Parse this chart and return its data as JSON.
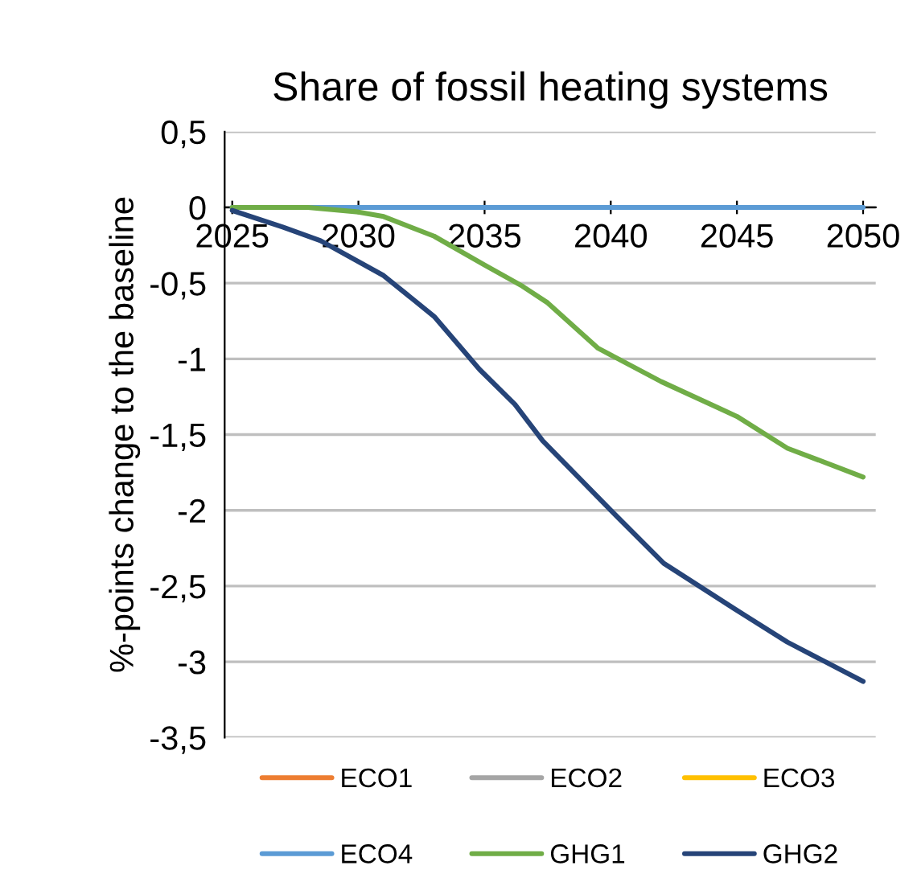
{
  "chart_data": {
    "type": "line",
    "title": "Share of fossil heating systems",
    "ylabel": "%-points change to the baseline",
    "x": [
      2025,
      2050
    ],
    "series": [
      {
        "name": "ECO1",
        "color": "#ed7d31",
        "values": [
          null,
          null
        ]
      },
      {
        "name": "ECO2",
        "color": "#a5a5a5",
        "values": [
          null,
          null
        ]
      },
      {
        "name": "ECO3",
        "color": "#ffc000",
        "values": [
          null,
          null
        ]
      },
      {
        "name": "ECO4",
        "color": "#5b9bd5",
        "values": [
          0,
          0
        ]
      },
      {
        "name": "GHG1",
        "color": "#70ad47",
        "x": [
          2025,
          2028,
          2030,
          2031,
          2033,
          2035,
          2036.5,
          2037.5,
          2039.5,
          2042,
          2045,
          2047,
          2050
        ],
        "values": [
          0,
          0,
          -0.03,
          -0.06,
          -0.19,
          -0.38,
          -0.52,
          -0.63,
          -0.93,
          -1.15,
          -1.38,
          -1.59,
          -1.78
        ]
      },
      {
        "name": "GHG2",
        "color": "#264478",
        "x": [
          2025,
          2027,
          2028.5,
          2031,
          2033,
          2034.8,
          2036.2,
          2037.3,
          2040,
          2042.1,
          2044.9,
          2047,
          2050
        ],
        "values": [
          -0.02,
          -0.13,
          -0.22,
          -0.45,
          -0.72,
          -1.07,
          -1.3,
          -1.54,
          -2.0,
          -2.35,
          -2.65,
          -2.87,
          -3.13
        ]
      }
    ],
    "xlim": [
      2024.7,
      2050.5
    ],
    "xticks": [
      2025,
      2030,
      2035,
      2040,
      2045,
      2050
    ],
    "ylim": [
      -3.5,
      0.5
    ],
    "yticks": [
      {
        "value": 0.5,
        "label": "0,5"
      },
      0,
      {
        "value": -0.5,
        "label": "-0,5"
      },
      -1,
      {
        "value": -1.5,
        "label": "-1,5"
      },
      -2,
      {
        "value": -2.5,
        "label": "-2,5"
      },
      -3,
      {
        "value": -3.5,
        "label": "-3,5"
      }
    ],
    "grid": "y",
    "legend": "bottom",
    "marker": "none",
    "line_style": "solid"
  }
}
